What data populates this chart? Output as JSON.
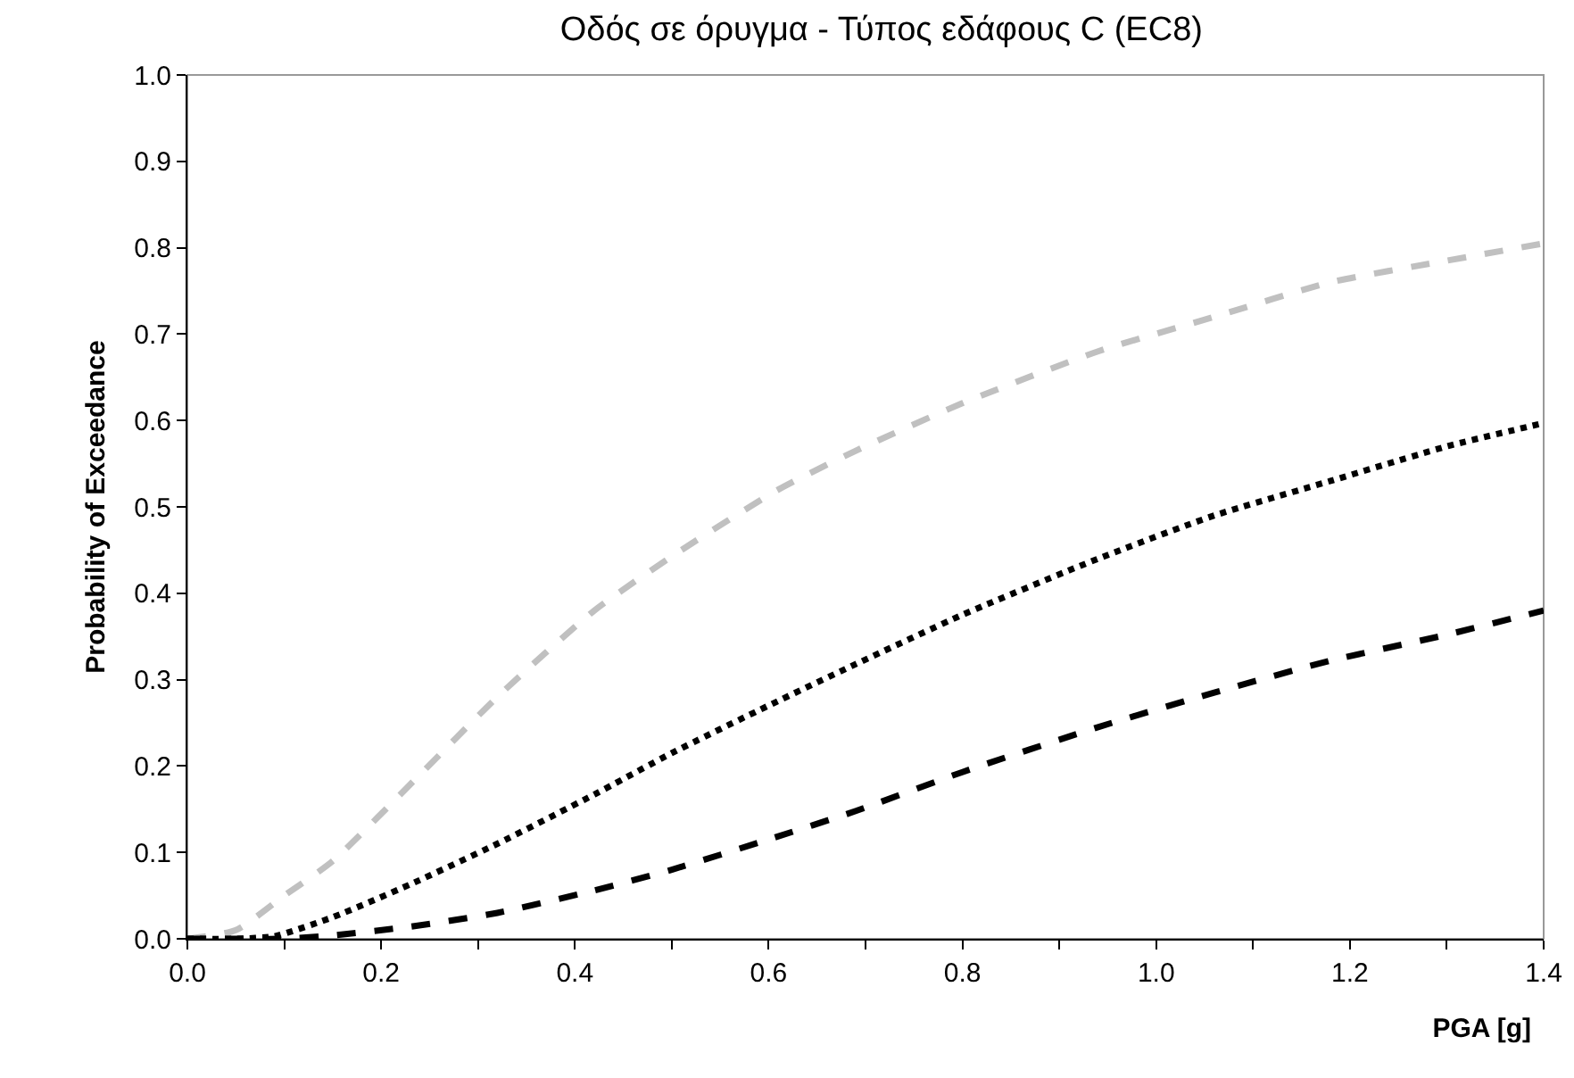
{
  "chart_data": {
    "type": "line",
    "title": "Οδός σε όρυγμα - Τύπος εδάφους C (EC8)",
    "xlabel": "PGA [g]",
    "ylabel": "Probability of Exceedance",
    "series": [
      {
        "color": "#c0c0c0",
        "line_style": "dashed",
        "x": [
          0,
          0.05,
          0.1,
          0.15,
          0.24,
          0.32,
          0.42,
          0.51,
          0.61,
          0.69,
          0.8,
          0.94,
          1.06,
          1.18,
          1.3,
          1.4
        ],
        "values": [
          0,
          0.01,
          0.05,
          0.09,
          0.19,
          0.28,
          0.38,
          0.45,
          0.52,
          0.565,
          0.62,
          0.68,
          0.72,
          0.76,
          0.785,
          0.805
        ]
      },
      {
        "color": "#000000",
        "line_style": "dotted",
        "x": [
          0,
          0.05,
          0.09,
          0.15,
          0.23,
          0.32,
          0.42,
          0.5,
          0.6,
          0.69,
          0.8,
          0.94,
          1.06,
          1.18,
          1.3,
          1.4
        ],
        "values": [
          0,
          0,
          0.003,
          0.025,
          0.063,
          0.11,
          0.167,
          0.215,
          0.27,
          0.318,
          0.375,
          0.44,
          0.49,
          0.53,
          0.57,
          0.597
        ]
      },
      {
        "color": "#000000",
        "line_style": "dashed",
        "x": [
          0,
          0.05,
          0.1,
          0.15,
          0.23,
          0.32,
          0.42,
          0.5,
          0.6,
          0.69,
          0.8,
          0.94,
          1.06,
          1.18,
          1.3,
          1.4
        ],
        "values": [
          0,
          0,
          0,
          0.004,
          0.014,
          0.03,
          0.056,
          0.08,
          0.115,
          0.148,
          0.193,
          0.245,
          0.285,
          0.322,
          0.352,
          0.38
        ]
      }
    ],
    "xlim": [
      0,
      1.4
    ],
    "ylim": [
      0,
      1.0
    ],
    "xticks": [
      {
        "value": 0,
        "label": "0.0"
      },
      {
        "value": 0.1,
        "label": null
      },
      {
        "value": 0.2,
        "label": "0.2"
      },
      {
        "value": 0.3,
        "label": null
      },
      {
        "value": 0.4,
        "label": "0.4"
      },
      {
        "value": 0.5,
        "label": null
      },
      {
        "value": 0.6,
        "label": "0.6"
      },
      {
        "value": 0.7,
        "label": null
      },
      {
        "value": 0.8,
        "label": "0.8"
      },
      {
        "value": 0.9,
        "label": null
      },
      {
        "value": 1.0,
        "label": "1.0"
      },
      {
        "value": 1.1,
        "label": null
      },
      {
        "value": 1.2,
        "label": "1.2"
      },
      {
        "value": 1.3,
        "label": null
      },
      {
        "value": 1.4,
        "label": "1.4"
      }
    ],
    "yticks": [
      {
        "value": 0,
        "label": "0.0"
      },
      {
        "value": 0.1,
        "label": "0.1"
      },
      {
        "value": 0.2,
        "label": "0.2"
      },
      {
        "value": 0.3,
        "label": "0.3"
      },
      {
        "value": 0.4,
        "label": "0.4"
      },
      {
        "value": 0.5,
        "label": "0.5"
      },
      {
        "value": 0.6,
        "label": "0.6"
      },
      {
        "value": 0.7,
        "label": "0.7"
      },
      {
        "value": 0.8,
        "label": "0.8"
      },
      {
        "value": 0.9,
        "label": "0.9"
      },
      {
        "value": 1.0,
        "label": "1.0"
      }
    ],
    "grid": false,
    "marker": "none"
  }
}
